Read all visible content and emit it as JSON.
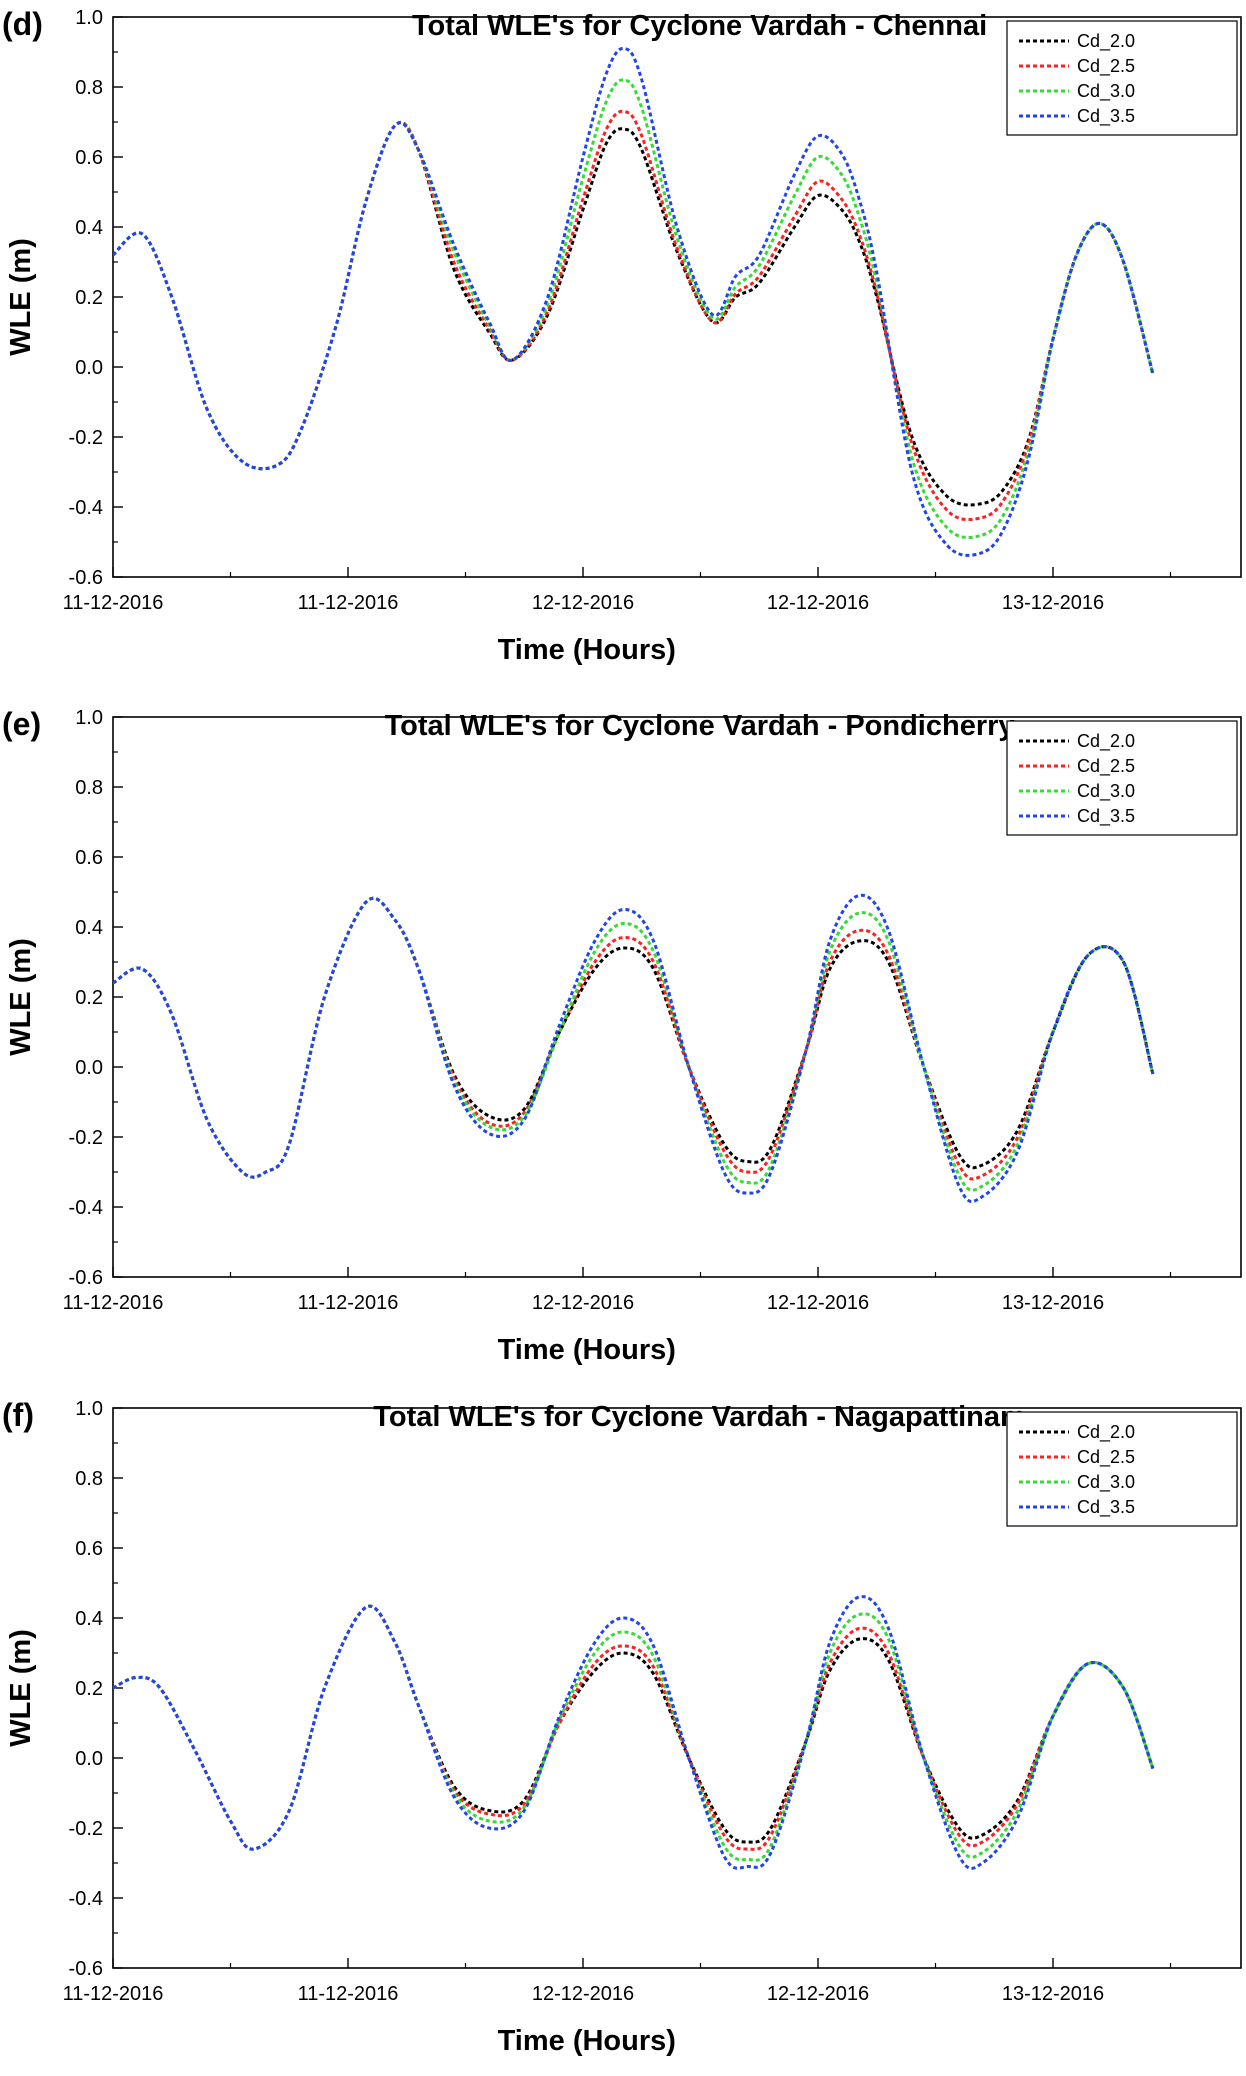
{
  "chart_data": [
    {
      "type": "line",
      "panel": "(d)",
      "title": "Total WLE's for Cyclone Vardah - Chennai",
      "xlabel": "Time (Hours)",
      "ylabel": "WLE (m)",
      "ylim": [
        -0.6,
        1.0
      ],
      "yticks": [
        "-0.6",
        "-0.4",
        "-0.2",
        "0.0",
        "0.2",
        "0.4",
        "0.6",
        "0.8",
        "1.0"
      ],
      "xlim": [
        0,
        96
      ],
      "xticks": [
        {
          "value": 0,
          "label": "11-12-2016"
        },
        {
          "value": 20,
          "label": "11-12-2016"
        },
        {
          "value": 40,
          "label": "12-12-2016"
        },
        {
          "value": 60,
          "label": "12-12-2016"
        },
        {
          "value": 80,
          "label": "13-12-2016"
        }
      ],
      "legend_position": "top-right",
      "series": [
        {
          "name": "Cd_2.0",
          "color": "#000000",
          "x": [
            0,
            2.5,
            5,
            8,
            11,
            14,
            16,
            19,
            21.5,
            24,
            26,
            29,
            32,
            34,
            37,
            40,
            42,
            43.5,
            45,
            48,
            51,
            53,
            55,
            58,
            60,
            62,
            63.5,
            65,
            68,
            71,
            74,
            76,
            78,
            80,
            82,
            84,
            86,
            88.5
          ],
          "y": [
            0.32,
            0.38,
            0.2,
            -0.12,
            -0.27,
            -0.28,
            -0.18,
            0.12,
            0.47,
            0.69,
            0.62,
            0.28,
            0.1,
            0.02,
            0.15,
            0.45,
            0.64,
            0.68,
            0.62,
            0.33,
            0.13,
            0.2,
            0.24,
            0.4,
            0.49,
            0.45,
            0.36,
            0.2,
            -0.2,
            -0.37,
            -0.39,
            -0.34,
            -0.2,
            0.08,
            0.32,
            0.41,
            0.3,
            -0.02
          ]
        },
        {
          "name": "Cd_2.5",
          "color": "#ff2020",
          "x": [
            0,
            2.5,
            5,
            8,
            11,
            14,
            16,
            19,
            21.5,
            24,
            26,
            29,
            32,
            34,
            37,
            40,
            42,
            43.5,
            45,
            48,
            51,
            53,
            55,
            58,
            60,
            62,
            63.5,
            65,
            68,
            71,
            74,
            76,
            78,
            80,
            82,
            84,
            86,
            88.5
          ],
          "y": [
            0.32,
            0.38,
            0.2,
            -0.12,
            -0.27,
            -0.28,
            -0.18,
            0.12,
            0.47,
            0.69,
            0.62,
            0.3,
            0.11,
            0.02,
            0.16,
            0.48,
            0.68,
            0.73,
            0.66,
            0.34,
            0.13,
            0.21,
            0.26,
            0.43,
            0.53,
            0.48,
            0.38,
            0.21,
            -0.22,
            -0.41,
            -0.43,
            -0.37,
            -0.21,
            0.08,
            0.32,
            0.41,
            0.3,
            -0.02
          ]
        },
        {
          "name": "Cd_3.0",
          "color": "#33dd33",
          "x": [
            0,
            2.5,
            5,
            8,
            11,
            14,
            16,
            19,
            21.5,
            24,
            26,
            29,
            32,
            34,
            37,
            40,
            42,
            43.5,
            45,
            48,
            51,
            53,
            55,
            58,
            60,
            62,
            63.5,
            65,
            68,
            71,
            74,
            76,
            78,
            80,
            82,
            84,
            86,
            88.5
          ],
          "y": [
            0.32,
            0.38,
            0.2,
            -0.12,
            -0.27,
            -0.28,
            -0.18,
            0.12,
            0.47,
            0.69,
            0.62,
            0.33,
            0.12,
            0.02,
            0.18,
            0.54,
            0.76,
            0.82,
            0.74,
            0.37,
            0.14,
            0.23,
            0.29,
            0.49,
            0.6,
            0.55,
            0.43,
            0.24,
            -0.26,
            -0.46,
            -0.48,
            -0.41,
            -0.23,
            0.08,
            0.32,
            0.41,
            0.3,
            -0.02
          ]
        },
        {
          "name": "Cd_3.5",
          "color": "#2244ee",
          "x": [
            0,
            2.5,
            5,
            8,
            11,
            14,
            16,
            19,
            21.5,
            24,
            26,
            29,
            32,
            34,
            37,
            40,
            42,
            43.5,
            45,
            48,
            51,
            53,
            55,
            58,
            60,
            62,
            63.5,
            65,
            68,
            71,
            74,
            76,
            78,
            80,
            82,
            84,
            86,
            88.5
          ],
          "y": [
            0.32,
            0.38,
            0.2,
            -0.12,
            -0.27,
            -0.28,
            -0.18,
            0.12,
            0.47,
            0.69,
            0.62,
            0.35,
            0.13,
            0.02,
            0.2,
            0.6,
            0.84,
            0.91,
            0.82,
            0.4,
            0.15,
            0.26,
            0.32,
            0.55,
            0.66,
            0.61,
            0.48,
            0.27,
            -0.3,
            -0.51,
            -0.53,
            -0.45,
            -0.25,
            0.08,
            0.32,
            0.41,
            0.3,
            -0.02
          ]
        }
      ]
    },
    {
      "type": "line",
      "panel": "(e)",
      "title": "Total WLE's for Cyclone Vardah - Pondicherry",
      "xlabel": "Time (Hours)",
      "ylabel": "WLE (m)",
      "ylim": [
        -0.6,
        1.0
      ],
      "yticks": [
        "-0.6",
        "-0.4",
        "-0.2",
        "0.0",
        "0.2",
        "0.4",
        "0.6",
        "0.8",
        "1.0"
      ],
      "xlim": [
        0,
        96
      ],
      "xticks": [
        {
          "value": 0,
          "label": "11-12-2016"
        },
        {
          "value": 20,
          "label": "11-12-2016"
        },
        {
          "value": 40,
          "label": "12-12-2016"
        },
        {
          "value": 60,
          "label": "12-12-2016"
        },
        {
          "value": 80,
          "label": "13-12-2016"
        }
      ],
      "legend_position": "top-right",
      "series": [
        {
          "name": "Cd_2.0",
          "color": "#000000",
          "x": [
            0,
            2.5,
            5,
            8,
            11,
            13,
            15,
            18,
            21.5,
            24,
            26,
            29,
            32,
            35,
            38,
            41,
            43.5,
            46,
            49,
            52,
            54,
            56,
            59,
            61,
            63.5,
            66,
            69,
            72,
            74,
            77,
            80,
            83,
            86,
            88.5
          ],
          "y": [
            0.24,
            0.28,
            0.15,
            -0.15,
            -0.3,
            -0.3,
            -0.22,
            0.2,
            0.47,
            0.42,
            0.28,
            -0.02,
            -0.14,
            -0.12,
            0.1,
            0.28,
            0.34,
            0.28,
            0.0,
            -0.22,
            -0.27,
            -0.23,
            0.05,
            0.28,
            0.36,
            0.3,
            0.0,
            -0.25,
            -0.28,
            -0.18,
            0.1,
            0.32,
            0.3,
            -0.02
          ]
        },
        {
          "name": "Cd_2.5",
          "color": "#ff2020",
          "x": [
            0,
            2.5,
            5,
            8,
            11,
            13,
            15,
            18,
            21.5,
            24,
            26,
            29,
            32,
            35,
            38,
            41,
            43.5,
            46,
            49,
            52,
            54,
            56,
            59,
            61,
            63.5,
            66,
            69,
            72,
            74,
            77,
            80,
            83,
            86,
            88.5
          ],
          "y": [
            0.24,
            0.28,
            0.15,
            -0.15,
            -0.3,
            -0.3,
            -0.22,
            0.2,
            0.47,
            0.42,
            0.28,
            -0.03,
            -0.16,
            -0.13,
            0.1,
            0.3,
            0.37,
            0.3,
            0.0,
            -0.24,
            -0.3,
            -0.25,
            0.05,
            0.3,
            0.39,
            0.32,
            0.0,
            -0.28,
            -0.31,
            -0.2,
            0.1,
            0.32,
            0.3,
            -0.02
          ]
        },
        {
          "name": "Cd_3.0",
          "color": "#33dd33",
          "x": [
            0,
            2.5,
            5,
            8,
            11,
            13,
            15,
            18,
            21.5,
            24,
            26,
            29,
            32,
            35,
            38,
            41,
            43.5,
            46,
            49,
            52,
            54,
            56,
            59,
            61,
            63.5,
            66,
            69,
            72,
            74,
            77,
            80,
            83,
            86,
            88.5
          ],
          "y": [
            0.24,
            0.28,
            0.15,
            -0.15,
            -0.3,
            -0.3,
            -0.22,
            0.2,
            0.47,
            0.42,
            0.28,
            -0.04,
            -0.17,
            -0.14,
            0.1,
            0.33,
            0.41,
            0.33,
            0.0,
            -0.27,
            -0.33,
            -0.28,
            0.05,
            0.33,
            0.44,
            0.36,
            0.0,
            -0.31,
            -0.34,
            -0.22,
            0.1,
            0.32,
            0.3,
            -0.02
          ]
        },
        {
          "name": "Cd_3.5",
          "color": "#2244ee",
          "x": [
            0,
            2.5,
            5,
            8,
            11,
            13,
            15,
            18,
            21.5,
            24,
            26,
            29,
            32,
            35,
            38,
            41,
            43.5,
            46,
            49,
            52,
            54,
            56,
            59,
            61,
            63.5,
            66,
            69,
            72,
            74,
            77,
            80,
            83,
            86,
            88.5
          ],
          "y": [
            0.24,
            0.28,
            0.15,
            -0.15,
            -0.3,
            -0.3,
            -0.22,
            0.2,
            0.47,
            0.42,
            0.28,
            -0.05,
            -0.19,
            -0.15,
            0.12,
            0.36,
            0.45,
            0.36,
            0.0,
            -0.3,
            -0.36,
            -0.3,
            0.05,
            0.36,
            0.49,
            0.39,
            0.0,
            -0.34,
            -0.37,
            -0.24,
            0.1,
            0.32,
            0.3,
            -0.02
          ]
        }
      ]
    },
    {
      "type": "line",
      "panel": "(f)",
      "title": "Total WLE's for Cyclone Vardah - Nagapattinam",
      "xlabel": "Time (Hours)",
      "ylabel": "WLE (m)",
      "ylim": [
        -0.6,
        1.0
      ],
      "yticks": [
        "-0.6",
        "-0.4",
        "-0.2",
        "0.0",
        "0.2",
        "0.4",
        "0.6",
        "0.8",
        "1.0"
      ],
      "xlim": [
        0,
        96
      ],
      "xticks": [
        {
          "value": 0,
          "label": "11-12-2016"
        },
        {
          "value": 20,
          "label": "11-12-2016"
        },
        {
          "value": 40,
          "label": "12-12-2016"
        },
        {
          "value": 60,
          "label": "12-12-2016"
        },
        {
          "value": 80,
          "label": "13-12-2016"
        }
      ],
      "legend_position": "top-right",
      "series": [
        {
          "name": "Cd_2.0",
          "color": "#000000",
          "x": [
            0,
            2,
            4,
            7,
            10,
            12,
            15,
            18,
            21.5,
            24,
            26,
            29,
            32,
            35,
            38,
            41,
            43.5,
            46,
            49,
            52,
            54,
            56,
            59,
            61,
            63.5,
            66,
            69,
            72,
            74,
            77,
            80,
            83,
            86,
            88.5
          ],
          "y": [
            0.2,
            0.23,
            0.2,
            0.02,
            -0.18,
            -0.26,
            -0.15,
            0.2,
            0.43,
            0.33,
            0.15,
            -0.08,
            -0.15,
            -0.12,
            0.1,
            0.25,
            0.3,
            0.24,
            0.0,
            -0.2,
            -0.24,
            -0.2,
            0.05,
            0.25,
            0.34,
            0.28,
            0.0,
            -0.2,
            -0.22,
            -0.12,
            0.12,
            0.27,
            0.2,
            -0.03
          ]
        },
        {
          "name": "Cd_2.5",
          "color": "#ff2020",
          "x": [
            0,
            2,
            4,
            7,
            10,
            12,
            15,
            18,
            21.5,
            24,
            26,
            29,
            32,
            35,
            38,
            41,
            43.5,
            46,
            49,
            52,
            54,
            56,
            59,
            61,
            63.5,
            66,
            69,
            72,
            74,
            77,
            80,
            83,
            86,
            88.5
          ],
          "y": [
            0.2,
            0.23,
            0.2,
            0.02,
            -0.18,
            -0.26,
            -0.15,
            0.2,
            0.43,
            0.33,
            0.15,
            -0.09,
            -0.16,
            -0.13,
            0.1,
            0.27,
            0.32,
            0.26,
            0.0,
            -0.22,
            -0.26,
            -0.22,
            0.05,
            0.27,
            0.37,
            0.3,
            0.0,
            -0.22,
            -0.24,
            -0.13,
            0.12,
            0.27,
            0.2,
            -0.03
          ]
        },
        {
          "name": "Cd_3.0",
          "color": "#33dd33",
          "x": [
            0,
            2,
            4,
            7,
            10,
            12,
            15,
            18,
            21.5,
            24,
            26,
            29,
            32,
            35,
            38,
            41,
            43.5,
            46,
            49,
            52,
            54,
            56,
            59,
            61,
            63.5,
            66,
            69,
            72,
            74,
            77,
            80,
            83,
            86,
            88.5
          ],
          "y": [
            0.2,
            0.23,
            0.2,
            0.02,
            -0.18,
            -0.26,
            -0.15,
            0.2,
            0.43,
            0.33,
            0.15,
            -0.1,
            -0.18,
            -0.14,
            0.11,
            0.3,
            0.36,
            0.29,
            0.0,
            -0.25,
            -0.29,
            -0.25,
            0.05,
            0.3,
            0.41,
            0.34,
            0.0,
            -0.25,
            -0.27,
            -0.15,
            0.12,
            0.27,
            0.2,
            -0.03
          ]
        },
        {
          "name": "Cd_3.5",
          "color": "#2244ee",
          "x": [
            0,
            2,
            4,
            7,
            10,
            12,
            15,
            18,
            21.5,
            24,
            26,
            29,
            32,
            35,
            38,
            41,
            43.5,
            46,
            49,
            52,
            54,
            56,
            59,
            61,
            63.5,
            66,
            69,
            72,
            74,
            77,
            80,
            83,
            86,
            88.5
          ],
          "y": [
            0.2,
            0.23,
            0.2,
            0.02,
            -0.18,
            -0.26,
            -0.15,
            0.2,
            0.43,
            0.33,
            0.15,
            -0.11,
            -0.2,
            -0.15,
            0.12,
            0.33,
            0.4,
            0.32,
            0.0,
            -0.28,
            -0.31,
            -0.27,
            0.05,
            0.33,
            0.46,
            0.37,
            0.0,
            -0.28,
            -0.3,
            -0.17,
            0.12,
            0.27,
            0.2,
            -0.03
          ]
        }
      ]
    }
  ]
}
